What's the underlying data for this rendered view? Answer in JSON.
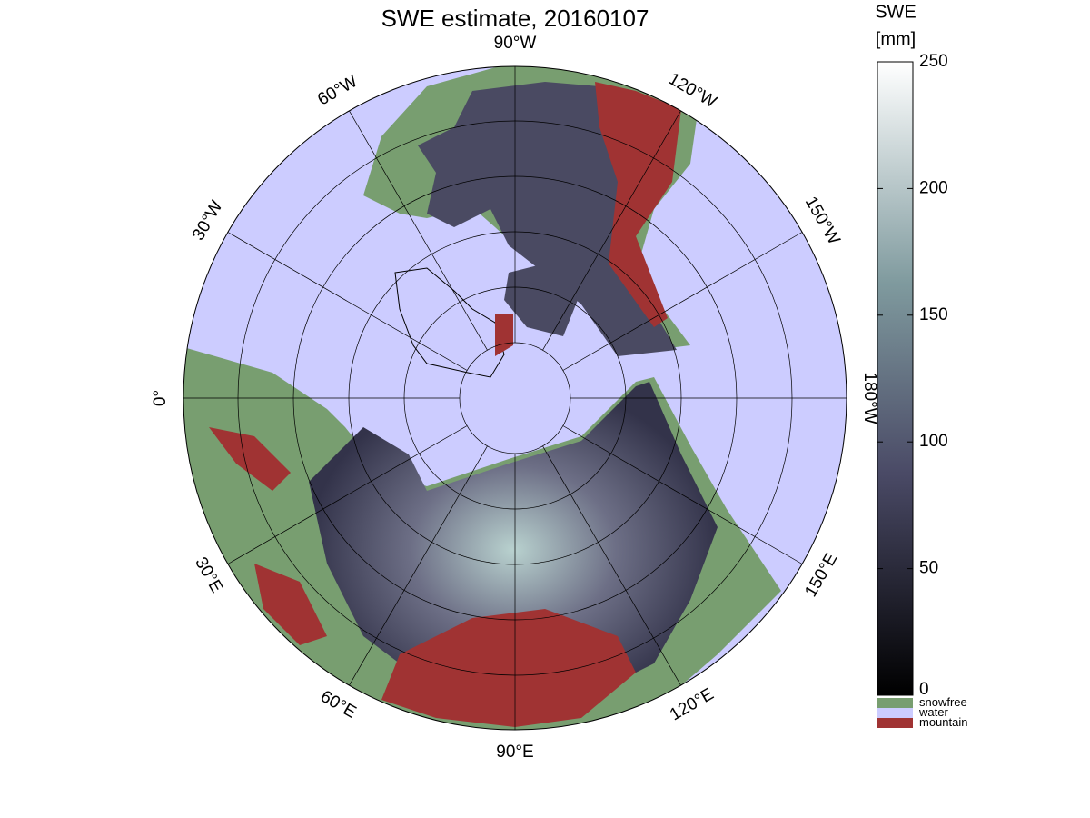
{
  "title": "SWE estimate, 20160107",
  "longitude_labels": [
    "90°W",
    "120°W",
    "150°W",
    "180°W",
    "150°E",
    "120°E",
    "90°E",
    "60°E",
    "30°E",
    "0°",
    "30°W",
    "60°W"
  ],
  "colorbar": {
    "label_lines": [
      "SWE",
      "[mm]"
    ],
    "lim": [
      0,
      250
    ],
    "ticks": [
      0,
      50,
      100,
      150,
      200,
      250
    ]
  },
  "legend": [
    {
      "label": "snowfree",
      "color": "#789e70"
    },
    {
      "label": "water",
      "color": "#ccccff"
    },
    {
      "label": "mountain",
      "color": "#a03333"
    }
  ]
}
